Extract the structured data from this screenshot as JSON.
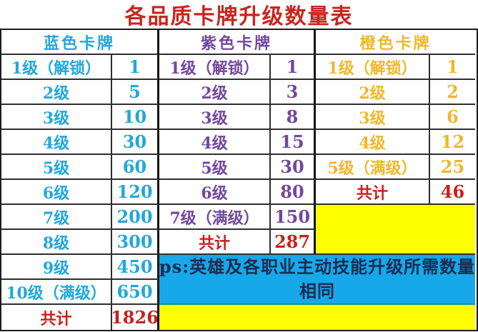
{
  "title": "各品质卡牌升级数量表",
  "colors": {
    "titleRed": "#c9251d",
    "blue": "#22a7db",
    "purple": "#74489d",
    "orange": "#efb82a",
    "sumRed": "#cb1f1b",
    "noteBg": "#16a8e8",
    "noteText": "#1d2b50",
    "yellow": "#fdff00"
  },
  "columns": [
    {
      "id": "blue",
      "header": "蓝色卡牌",
      "rows": [
        {
          "label": "1级（解锁）",
          "value": "1"
        },
        {
          "label": "2级",
          "value": "5"
        },
        {
          "label": "3级",
          "value": "10"
        },
        {
          "label": "4级",
          "value": "30"
        },
        {
          "label": "5级",
          "value": "60"
        },
        {
          "label": "6级",
          "value": "120"
        },
        {
          "label": "7级",
          "value": "200"
        },
        {
          "label": "8级",
          "value": "300"
        },
        {
          "label": "9级",
          "value": "450"
        },
        {
          "label": "10级（满级）",
          "value": "650"
        }
      ],
      "total_label": "共计",
      "total_value": "1826"
    },
    {
      "id": "purple",
      "header": "紫色卡牌",
      "rows": [
        {
          "label": "1级（解锁）",
          "value": "1"
        },
        {
          "label": "2级",
          "value": "3"
        },
        {
          "label": "3级",
          "value": "8"
        },
        {
          "label": "4级",
          "value": "15"
        },
        {
          "label": "5级",
          "value": "30"
        },
        {
          "label": "6级",
          "value": "80"
        },
        {
          "label": "7级（满级）",
          "value": "150"
        }
      ],
      "total_label": "共计",
      "total_value": "287"
    },
    {
      "id": "orange",
      "header": "橙色卡牌",
      "rows": [
        {
          "label": "1级（解锁）",
          "value": "1"
        },
        {
          "label": "2级",
          "value": "2"
        },
        {
          "label": "3级",
          "value": "6"
        },
        {
          "label": "4级",
          "value": "12"
        },
        {
          "label": "5级（满级）",
          "value": "25"
        }
      ],
      "total_label": "共计",
      "total_value": "46"
    }
  ],
  "note": {
    "line1": "ps:英雄及各职业主动技能升级所需数量",
    "line2": "相同"
  }
}
